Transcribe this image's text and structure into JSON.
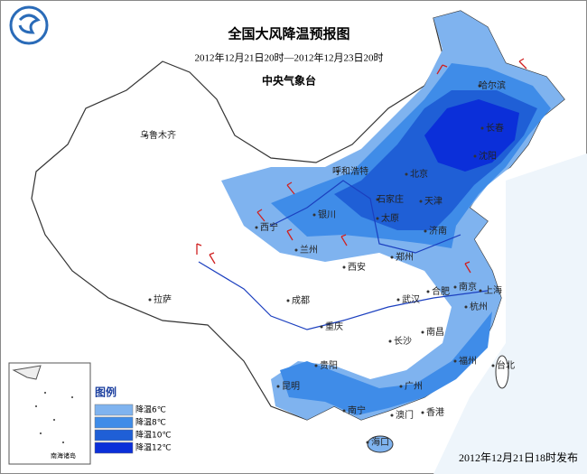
{
  "header": {
    "title": "全国大风降温预报图",
    "period": "2012年12月21日20时—2012年12月23日20时",
    "issuer": "中央气象台"
  },
  "legend": {
    "title": "图例",
    "items": [
      {
        "label": "降温6℃",
        "color": "#7fb3ef"
      },
      {
        "label": "降温8℃",
        "color": "#3f8ce8"
      },
      {
        "label": "降温10℃",
        "color": "#1f5fd6"
      },
      {
        "label": "降温12℃",
        "color": "#0b2fd9"
      }
    ]
  },
  "cities": [
    "哈尔滨",
    "长春",
    "沈阳",
    "乌鲁木齐",
    "呼和浩特",
    "北京",
    "石家庄",
    "天津",
    "银川",
    "太原",
    "济南",
    "西宁",
    "兰州",
    "西安",
    "郑州",
    "拉萨",
    "成都",
    "合肥",
    "南京",
    "上海",
    "武汉",
    "杭州",
    "重庆",
    "南昌",
    "长沙",
    "贵阳",
    "福州",
    "台北",
    "昆明",
    "广州",
    "南宁",
    "香港",
    "澳门",
    "海口"
  ],
  "inset_label": "南海诸岛",
  "footer": "2012年12月21日18时发布"
}
